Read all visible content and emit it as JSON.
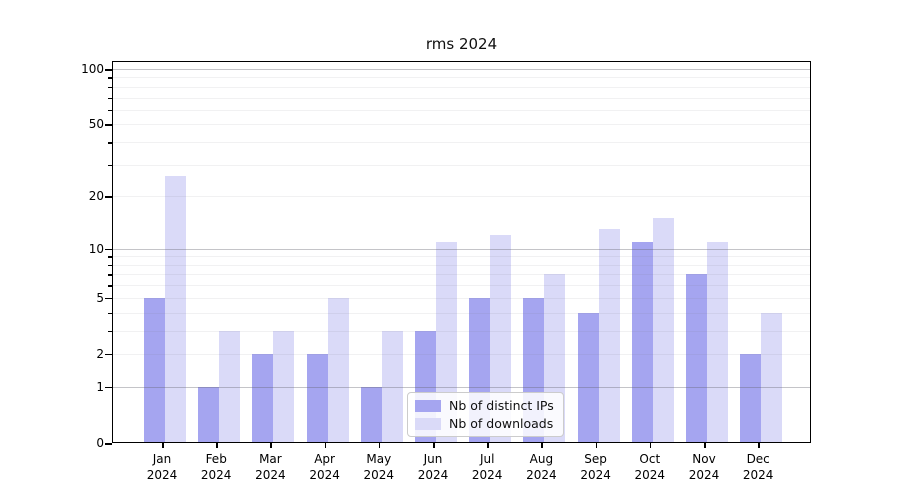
{
  "chart_data": {
    "type": "bar",
    "title": "rms 2024",
    "categories": [
      "Jan",
      "Feb",
      "Mar",
      "Apr",
      "May",
      "Jun",
      "Jul",
      "Aug",
      "Sep",
      "Oct",
      "Nov",
      "Dec"
    ],
    "year_label": "2024",
    "series": [
      {
        "name": "Nb of distinct IPs",
        "color": "#a5a5f0",
        "values": [
          5,
          1,
          2,
          2,
          1,
          3,
          5,
          5,
          4,
          11,
          7,
          2
        ]
      },
      {
        "name": "Nb of downloads",
        "color": "#dadaf8",
        "values": [
          26,
          3,
          3,
          5,
          3,
          11,
          12,
          7,
          13,
          15,
          11,
          4
        ]
      }
    ],
    "yscale": "log1p",
    "ylim": [
      0,
      111
    ],
    "y_tick_labels": [
      "100",
      "50",
      "20",
      "10",
      "5",
      "2",
      "1",
      "0"
    ],
    "y_tick_values": [
      100,
      50,
      20,
      10,
      5,
      2,
      1,
      0
    ],
    "y_minor_grid": [
      2,
      3,
      4,
      5,
      6,
      7,
      8,
      9,
      20,
      30,
      40,
      50,
      60,
      70,
      80,
      90
    ],
    "y_major_grid": [
      1,
      10,
      100
    ],
    "grid": true,
    "legend_position": "inside-bottom-center"
  }
}
